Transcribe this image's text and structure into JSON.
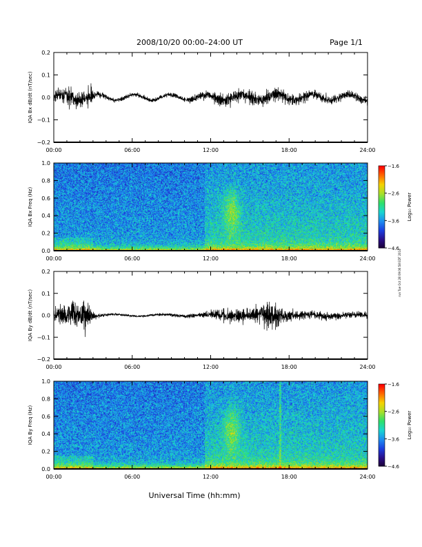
{
  "header": {
    "title": "2008/10/20  00:00–24:00 UT",
    "page": "Page 1/1"
  },
  "footer": {
    "xlabel": "Universal Time (hh:mm)",
    "side_note": "run Tue Oct 28 09:06:58 EDT 2014"
  },
  "colors": {
    "trace": "#000000",
    "colormap": [
      "#1a0030",
      "#2a0f8a",
      "#1b3fe0",
      "#1e8ef0",
      "#19d6d0",
      "#2ee06a",
      "#a7e02b",
      "#f5d300",
      "#ff6a00",
      "#ff0000"
    ]
  },
  "chart_data": [
    {
      "type": "line",
      "ylabel": "IQA Bx dB/dt (nT/sec)",
      "xlim": [
        0,
        24
      ],
      "ylim": [
        -0.2,
        0.2
      ],
      "yticks": [
        "0.2",
        "0.1",
        "0.0",
        "−0.1",
        "−0.2"
      ],
      "xticks": [
        "00:00",
        "06:00",
        "12:00",
        "18:00",
        "24:00"
      ],
      "envelope": {
        "t": [
          0,
          1,
          1.2,
          1.5,
          2,
          2.5,
          2.7,
          3,
          4,
          6,
          8,
          10,
          11,
          12,
          13,
          14,
          14.5,
          15,
          16,
          17,
          18,
          20,
          22,
          24
        ],
        "amp": [
          0.05,
          0.07,
          0.08,
          0.09,
          0.06,
          0.05,
          0.12,
          0.03,
          0.015,
          0.015,
          0.015,
          0.02,
          0.025,
          0.04,
          0.045,
          0.05,
          0.055,
          0.05,
          0.045,
          0.05,
          0.04,
          0.035,
          0.03,
          0.03
        ]
      }
    },
    {
      "type": "heatmap",
      "ylabel": "IQA Bx Freq (Hz)",
      "xlim": [
        0,
        24
      ],
      "ylim": [
        0,
        1.0
      ],
      "yticks": [
        "1.0",
        "0.8",
        "0.6",
        "0.4",
        "0.2",
        "0.0"
      ],
      "xticks": [
        "00:00",
        "06:00",
        "12:00",
        "18:00",
        "24:00"
      ],
      "colorbar": {
        "label": "Log₁₀ Power",
        "ticks": [
          "−1.6",
          "−2.6",
          "−3.6",
          "−4.6"
        ],
        "range": [
          -4.6,
          -1.6
        ]
      },
      "features": {
        "active_start": 11.5,
        "burst_center": 13.6,
        "burst_freq": 0.45
      }
    },
    {
      "type": "line",
      "ylabel": "IQA By dB/dt (nT/sec)",
      "xlim": [
        0,
        24
      ],
      "ylim": [
        -0.2,
        0.2
      ],
      "yticks": [
        "0.2",
        "0.1",
        "0.0",
        "−0.1",
        "−0.2"
      ],
      "xticks": [
        "00:00",
        "06:00",
        "12:00",
        "18:00",
        "24:00"
      ],
      "envelope": {
        "t": [
          0,
          1,
          1.5,
          2,
          2.3,
          2.6,
          3,
          4,
          6,
          8,
          10,
          11,
          12,
          13,
          14,
          15,
          16,
          16.5,
          17,
          17.5,
          18,
          20,
          22,
          24
        ],
        "amp": [
          0.05,
          0.08,
          0.09,
          0.07,
          0.15,
          0.12,
          0.03,
          0.01,
          0.008,
          0.01,
          0.012,
          0.015,
          0.03,
          0.045,
          0.05,
          0.05,
          0.08,
          0.11,
          0.1,
          0.06,
          0.04,
          0.03,
          0.025,
          0.02
        ]
      }
    },
    {
      "type": "heatmap",
      "ylabel": "IQA By Freq (Hz)",
      "xlim": [
        0,
        24
      ],
      "ylim": [
        0,
        1.0
      ],
      "yticks": [
        "1.0",
        "0.8",
        "0.6",
        "0.4",
        "0.2",
        "0.0"
      ],
      "xticks": [
        "00:00",
        "06:00",
        "12:00",
        "18:00",
        "24:00"
      ],
      "colorbar": {
        "label": "Log₁₀ Power",
        "ticks": [
          "−1.6",
          "−2.6",
          "−3.6",
          "−4.6"
        ],
        "range": [
          -4.6,
          -1.6
        ]
      },
      "features": {
        "active_start": 11.5,
        "burst_center": 13.6,
        "burst_freq": 0.45,
        "vertical_line": 17.3
      }
    }
  ]
}
